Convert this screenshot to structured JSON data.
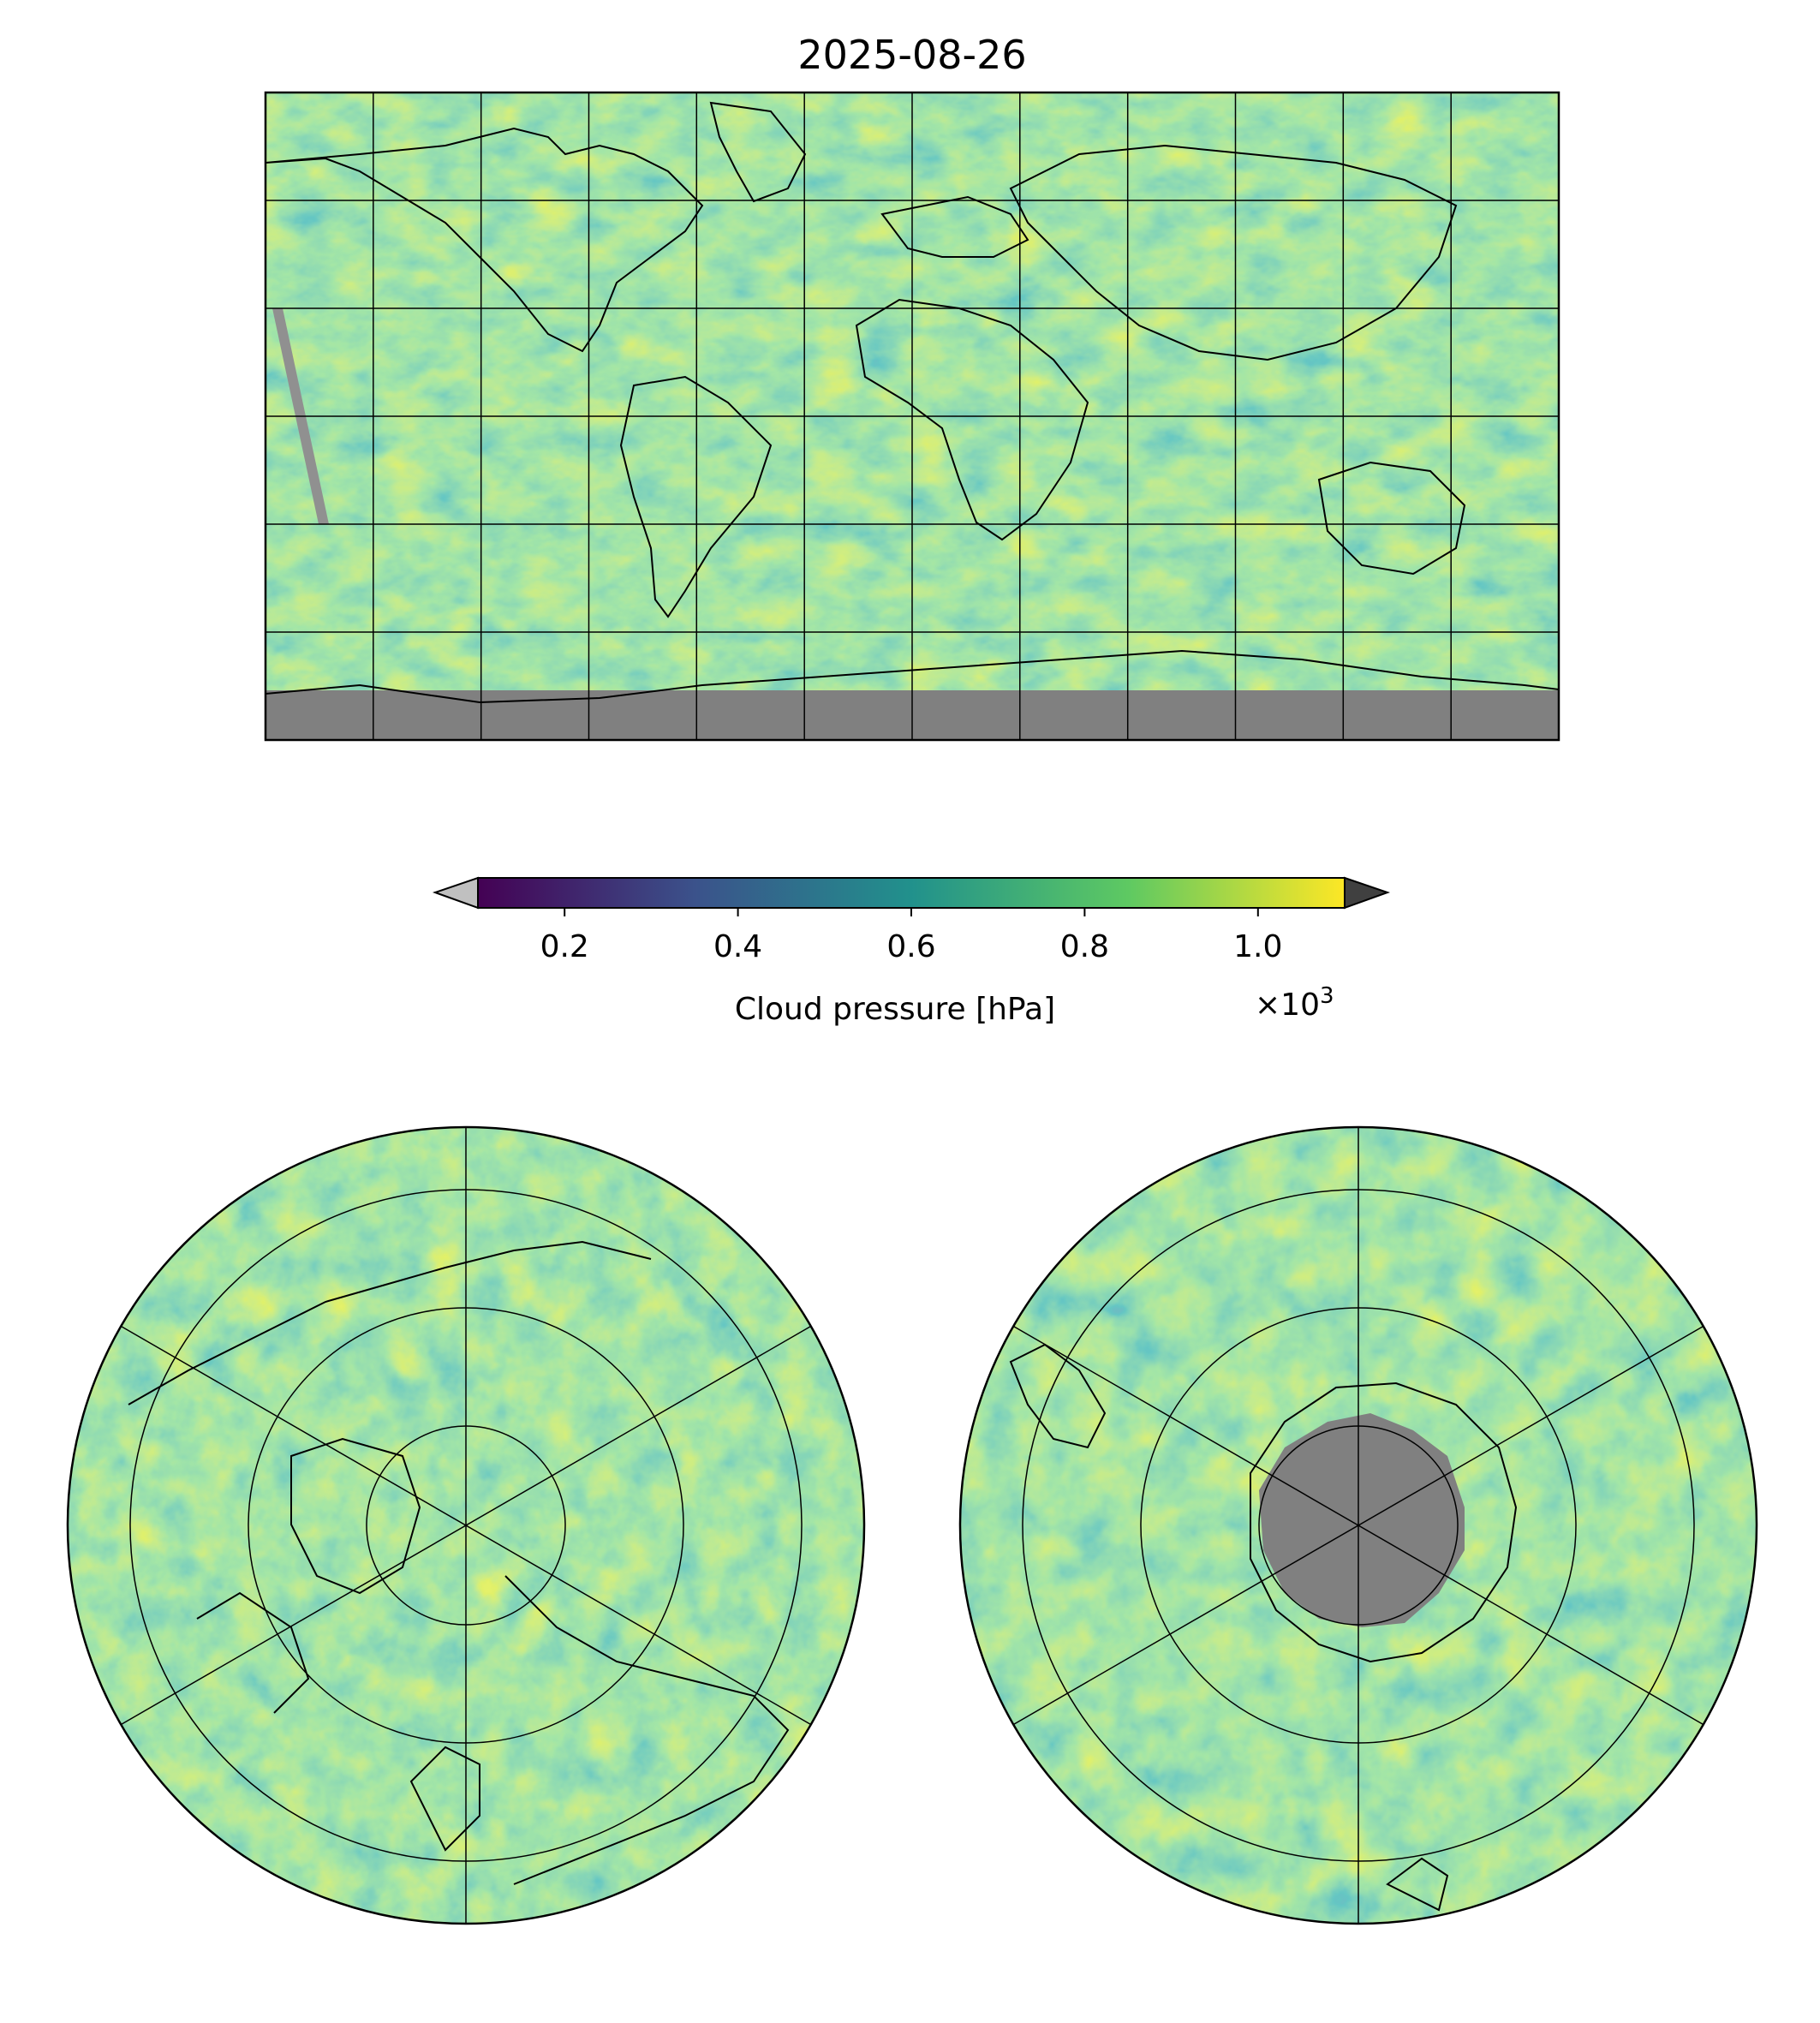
{
  "figure": {
    "title": "2025-08-26"
  },
  "colorbar": {
    "label": "Cloud pressure [hPa]",
    "multiplier_base": "×10",
    "multiplier_exp": "3",
    "range": [
      0.1,
      1.1
    ],
    "ticks": [
      "0.2",
      "0.4",
      "0.6",
      "0.8",
      "1.0"
    ],
    "tick_values": [
      0.2,
      0.4,
      0.6,
      0.8,
      1.0
    ],
    "colormap": "viridis",
    "colors": [
      "#440154",
      "#3b528b",
      "#21918c",
      "#5ec962",
      "#fde725"
    ],
    "under_color": "#c0c0c0",
    "over_color": "#404040",
    "missing_color": "#808080"
  },
  "maps": {
    "global": {
      "projection": "equirectangular",
      "gridlines": true
    },
    "north_polar": {
      "projection": "north polar stereographic",
      "gridlines": true
    },
    "south_polar": {
      "projection": "south polar stereographic",
      "gridlines": true
    }
  }
}
